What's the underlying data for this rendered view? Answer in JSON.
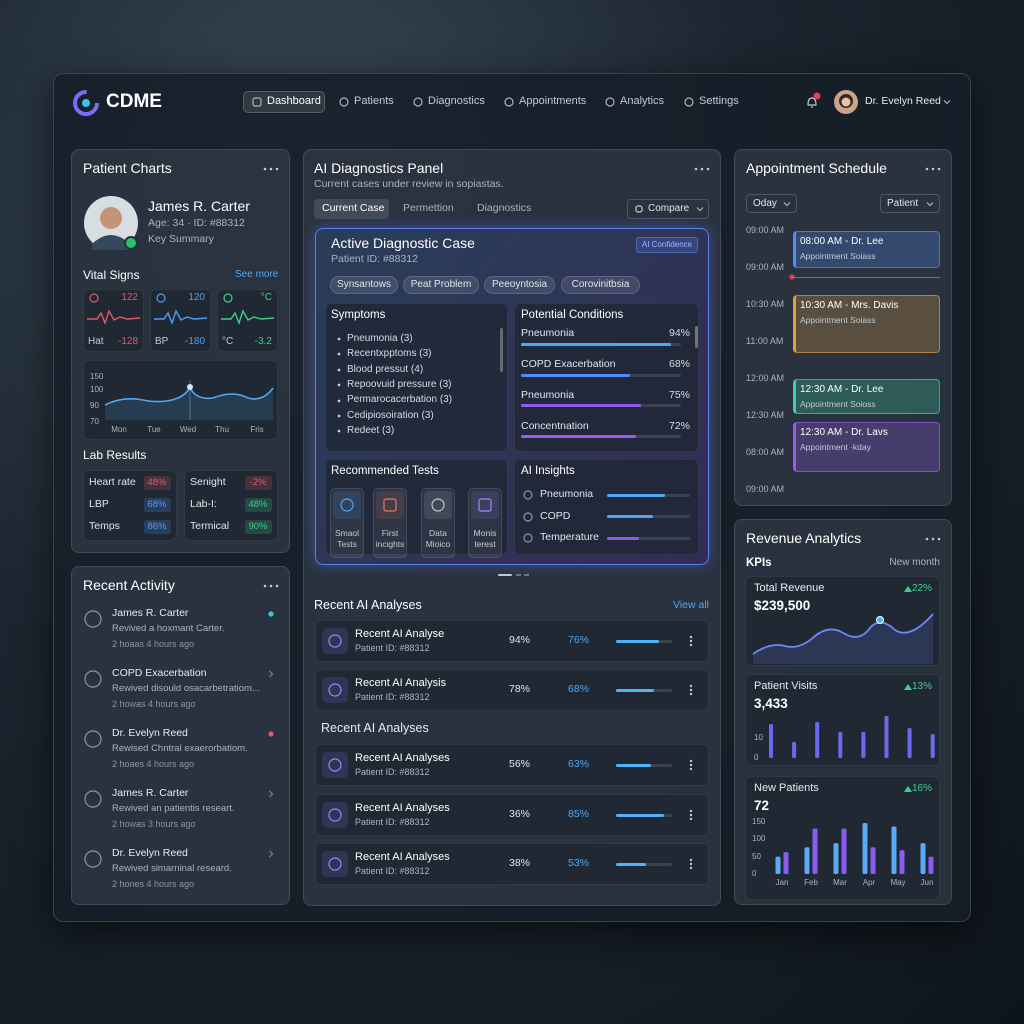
{
  "nav": {
    "brand": "CDME",
    "items": [
      "Dashboard",
      "Patients",
      "Diagnostics",
      "Appointments",
      "Analytics",
      "Settings"
    ],
    "user": "Dr. Evelyn Reed"
  },
  "patient_charts": {
    "title": "Patient Charts",
    "name": "James R. Carter",
    "meta": "Age: 34 · ID: #88312",
    "summary": "Key Summary",
    "vitals_title": "Vital Signs",
    "see_more": "See more",
    "vitals": [
      {
        "top": "122",
        "label": "Hat",
        "value": "-128",
        "color": "#e05a64"
      },
      {
        "top": "120",
        "label": "BP",
        "value": "-180",
        "color": "#4f9cf0"
      },
      {
        "top": "°C",
        "label": "°C",
        "value": "-3.2",
        "color": "#3fcf8e"
      }
    ],
    "chart_y_labels": [
      "150",
      "100",
      "90",
      "70"
    ],
    "chart_x_labels": [
      "Mon",
      "Tue",
      "Wed",
      "Thu",
      "Fris"
    ],
    "lab_title": "Lab Results",
    "labs": [
      [
        {
          "name": "Heart rate",
          "value": "48%",
          "color": "#e05a64"
        },
        {
          "name": "LBP",
          "value": "68%",
          "color": "#4f9cf0"
        },
        {
          "name": "Temps",
          "value": "86%",
          "color": "#4f9cf0"
        }
      ],
      [
        {
          "name": "Senight",
          "value": "-2%",
          "color": "#e05a64"
        },
        {
          "name": "Lab-I:",
          "value": "48%",
          "color": "#3fcf8e"
        },
        {
          "name": "Termical",
          "value": "90%",
          "color": "#3fcf8e"
        }
      ]
    ]
  },
  "recent_activity": {
    "title": "Recent Activity",
    "items": [
      {
        "name": "James R. Carter",
        "text": "Revived a hoxmant Carter.",
        "time": "2 hoaas 4 hours ago"
      },
      {
        "name": "COPD Exacerbation",
        "text": "Rewived disould osacarbetratiom...",
        "time": "2 howas 4 hours ago"
      },
      {
        "name": "Dr. Evelyn Reed",
        "text": "Rewised Chntral exaerorbatiom.",
        "time": "2 hoaes 4 hours ago"
      },
      {
        "name": "James R. Carter",
        "text": "Rewived an patientis researt.",
        "time": "2 howas 3 hours ago"
      },
      {
        "name": "Dr. Evelyn Reed",
        "text": "Rewived simarninal researd.",
        "time": "2 hones 4 hours ago"
      }
    ]
  },
  "diagnostics": {
    "title": "AI Diagnostics Panel",
    "subtitle": "Current cases under review in sopiastas.",
    "tabs": [
      "Current Case",
      "Permettion",
      "Diagnostics"
    ],
    "compare": "Compare",
    "case": {
      "title": "Active Diagnostic Case",
      "patient": "Patient ID: #88312",
      "badge": "AI Confidence",
      "chips": [
        "Synsantows",
        "Peat Problem",
        "Peeoyntosia",
        "Corovinitbsia"
      ],
      "symptoms_title": "Symptoms",
      "symptoms": [
        "Pneumonia (3)",
        "Recentxpptoms (3)",
        "Blood pressut (4)",
        "Repoovuid pressure (3)",
        "Permarocacerbation (3)",
        "Cedipiosoiration (3)",
        "Redeet (3)"
      ],
      "conditions_title": "Potential Conditions",
      "conditions": [
        {
          "name": "Pneumonia",
          "value": 94,
          "label": "94%",
          "color": "#4fa8f5"
        },
        {
          "name": "COPD Exacerbation",
          "value": 68,
          "label": "68%",
          "color": "#4f8ef5"
        },
        {
          "name": "Pneumonia",
          "value": 75,
          "label": "75%",
          "color": "#8a5cf0"
        },
        {
          "name": "Concentnation",
          "value": 72,
          "label": "72%",
          "color": "#9a5cf0"
        }
      ],
      "tests_title": "Recommended Tests",
      "tests": [
        "Smaol Tests",
        "First incights",
        "Data Mioico",
        "Monis terest"
      ],
      "insights_title": "AI Insights",
      "insights": [
        {
          "name": "Pneumonia",
          "value": 70,
          "color": "#4fa8f5"
        },
        {
          "name": "COPD",
          "value": 55,
          "color": "#4fa8f5"
        },
        {
          "name": "Temperature",
          "value": 38,
          "color": "#8a5cf0"
        }
      ]
    }
  },
  "recent_analyses": {
    "title": "Recent AI Analyses",
    "view_all": "View all",
    "subheading": "Recent AI Analyses",
    "rows": [
      {
        "name": "Recent AI Analyse",
        "id": "Patient ID: #88312",
        "score": "94%",
        "confidence": 76,
        "confidence_label": "76%"
      },
      {
        "name": "Recent AI Analysis",
        "id": "Patient ID: #88312",
        "score": "78%",
        "confidence": 68,
        "confidence_label": "68%"
      },
      {
        "name": "Recent AI Analyses",
        "id": "Patient ID: #88312",
        "score": "56%",
        "confidence": 63,
        "confidence_label": "63%"
      },
      {
        "name": "Recent AI Analyses",
        "id": "Patient ID: #88312",
        "score": "36%",
        "confidence": 85,
        "confidence_label": "85%"
      },
      {
        "name": "Recent AI Analyses",
        "id": "Patient ID: #88312",
        "score": "38%",
        "confidence": 53,
        "confidence_label": "53%"
      }
    ]
  },
  "appointments": {
    "title": "Appointment Schedule",
    "filters": [
      "Oday",
      "Patient"
    ],
    "times": [
      "09:00 AM",
      "09:00 AM",
      "10:30 AM",
      "11:00 AM",
      "12:00 AM",
      "12:30 AM",
      "08:00 AM",
      "09:00 AM"
    ],
    "events": [
      {
        "title": "08:00 AM - Dr. Lee",
        "sub": "Appointment Soiass",
        "color": "#4f8ef5"
      },
      {
        "title": "10:30 AM - Mrs. Davis",
        "sub": "Appointment Soiass",
        "color": "#e0a040"
      },
      {
        "title": "12:30 AM - Dr. Lee",
        "sub": "Appointment Soioss",
        "color": "#3fcfa0"
      },
      {
        "title": "12:30 AM - Dr. Lavs",
        "sub": "Appointment ·kday",
        "color": "#9a5cf0"
      }
    ]
  },
  "revenue": {
    "title": "Revenue Analytics",
    "kpis": "KPIs",
    "period": "New month",
    "cards": [
      {
        "title": "Total Revenue",
        "value": "$239,500",
        "change": "22%"
      },
      {
        "title": "Patient Visits",
        "value": "3,433",
        "change": "13%"
      },
      {
        "title": "New Patients",
        "value": "72",
        "change": "16%"
      }
    ],
    "visits_chart": {
      "type": "bar",
      "ylim": [
        0,
        22
      ],
      "yticks": [
        0,
        10
      ],
      "values": [
        17,
        8,
        18,
        13,
        13,
        21,
        15,
        12
      ],
      "color": "#6a6af0"
    },
    "new_patients_chart": {
      "type": "bar",
      "categories": [
        "Jan",
        "Feb",
        "Mar",
        "Apr",
        "May",
        "Jun"
      ],
      "ylim": [
        0,
        160
      ],
      "yticks": [
        0,
        50,
        100,
        150
      ],
      "series": [
        {
          "color": "#5aaaf5",
          "values": [
            50,
            77,
            89,
            147,
            137,
            89
          ]
        },
        {
          "color": "#8a5cf0",
          "values": [
            63,
            131,
            131,
            77,
            69,
            50
          ]
        }
      ]
    }
  }
}
